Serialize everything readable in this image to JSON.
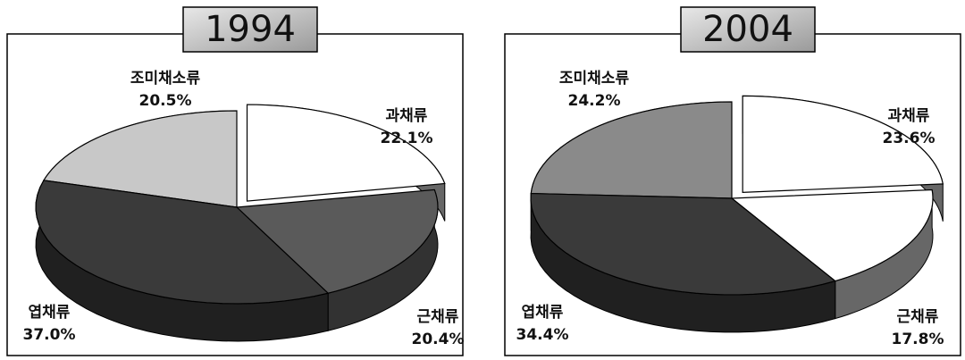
{
  "chart_data": [
    {
      "type": "pie",
      "title": "1994",
      "categories": [
        "조미채소류",
        "과채류",
        "근채류",
        "엽채류"
      ],
      "values": [
        20.5,
        22.1,
        20.4,
        37.0
      ],
      "value_labels": [
        "20.5%",
        "22.1%",
        "20.4%",
        "37.0%"
      ],
      "colors": [
        "#c8c8c8",
        "#ffffff",
        "#5a5a5a",
        "#3a3a3a"
      ]
    },
    {
      "type": "pie",
      "title": "2004",
      "categories": [
        "조미채소류",
        "과채류",
        "근채류",
        "엽채류"
      ],
      "values": [
        24.2,
        23.6,
        17.8,
        34.4
      ],
      "value_labels": [
        "24.2%",
        "23.6%",
        "17.8%",
        "34.4%"
      ],
      "colors": [
        "#8a8a8a",
        "#ffffff",
        "#ffffff",
        "#3a3a3a"
      ]
    }
  ]
}
